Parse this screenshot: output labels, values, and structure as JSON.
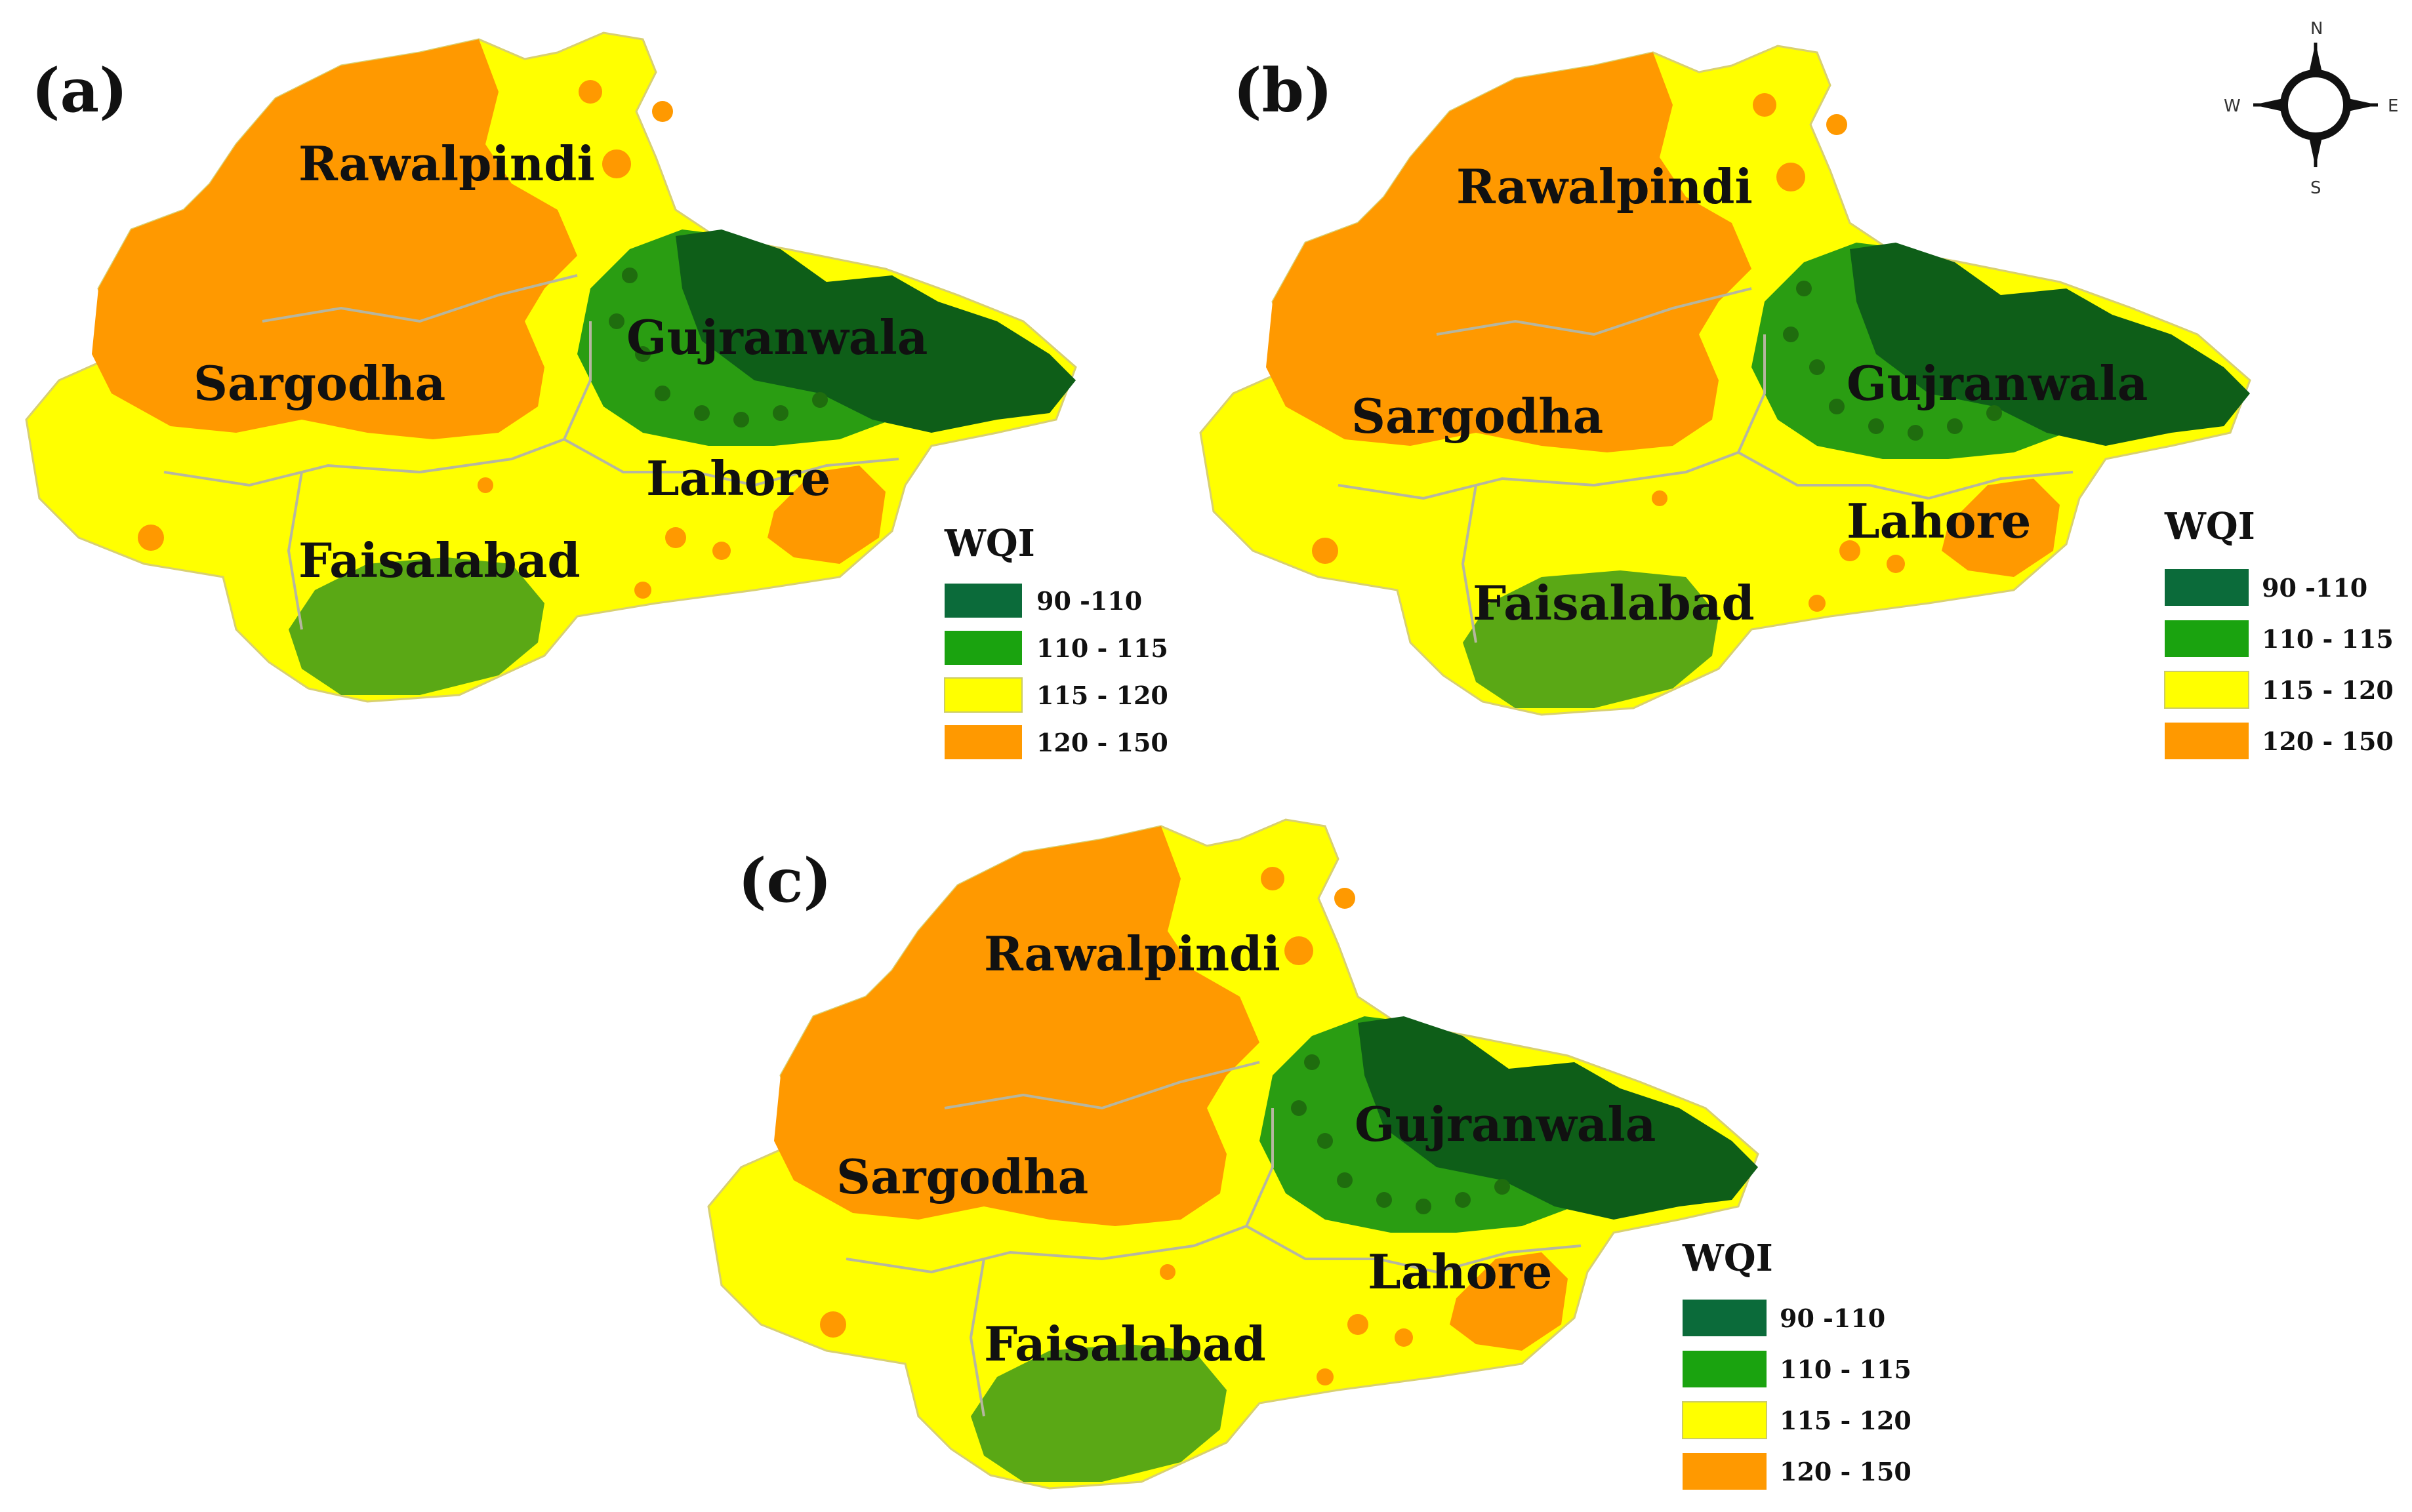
{
  "colors": {
    "dark_green": "#0e5e18",
    "mid_green": "#2a9d12",
    "olive_green": "#5aa815",
    "yellow": "#ffff00",
    "orange": "#ff9900",
    "legend_90_110": "#0b6b3a",
    "legend_110_115": "#1aa30f",
    "legend_115_120": "#ffff00",
    "legend_120_150": "#ff9900",
    "boundary": "#b6b6a0"
  },
  "compass": {
    "icon": "compass-rose-icon",
    "n": "N",
    "s": "S",
    "e": "E",
    "w": "W"
  },
  "panels": [
    {
      "letter": "(a)",
      "regions": [
        "Rawalpindi",
        "Sargodha",
        "Gujranwala",
        "Lahore",
        "Faisalabad"
      ],
      "legend": {
        "title": "WQI",
        "items": [
          {
            "label": "90 -110",
            "color_key": "legend_90_110"
          },
          {
            "label": "110 - 115",
            "color_key": "legend_110_115"
          },
          {
            "label": "115 - 120",
            "color_key": "legend_115_120"
          },
          {
            "label": "120 - 150",
            "color_key": "legend_120_150"
          }
        ]
      }
    },
    {
      "letter": "(b)",
      "regions": [
        "Rawalpindi",
        "Sargodha",
        "Gujranwala",
        "Lahore",
        "Faisalabad"
      ],
      "legend": {
        "title": "WQI",
        "items": [
          {
            "label": "90 -110",
            "color_key": "legend_90_110"
          },
          {
            "label": "110 - 115",
            "color_key": "legend_110_115"
          },
          {
            "label": "115 - 120",
            "color_key": "legend_115_120"
          },
          {
            "label": "120 - 150",
            "color_key": "legend_120_150"
          }
        ]
      }
    },
    {
      "letter": "(c)",
      "regions": [
        "Rawalpindi",
        "Sargodha",
        "Gujranwala",
        "Lahore",
        "Faisalabad"
      ],
      "legend": {
        "title": "WQI",
        "items": [
          {
            "label": "90 -110",
            "color_key": "legend_90_110"
          },
          {
            "label": "110 - 115",
            "color_key": "legend_110_115"
          },
          {
            "label": "115 - 120",
            "color_key": "legend_115_120"
          },
          {
            "label": "120 - 150",
            "color_key": "legend_120_150"
          }
        ]
      }
    }
  ]
}
